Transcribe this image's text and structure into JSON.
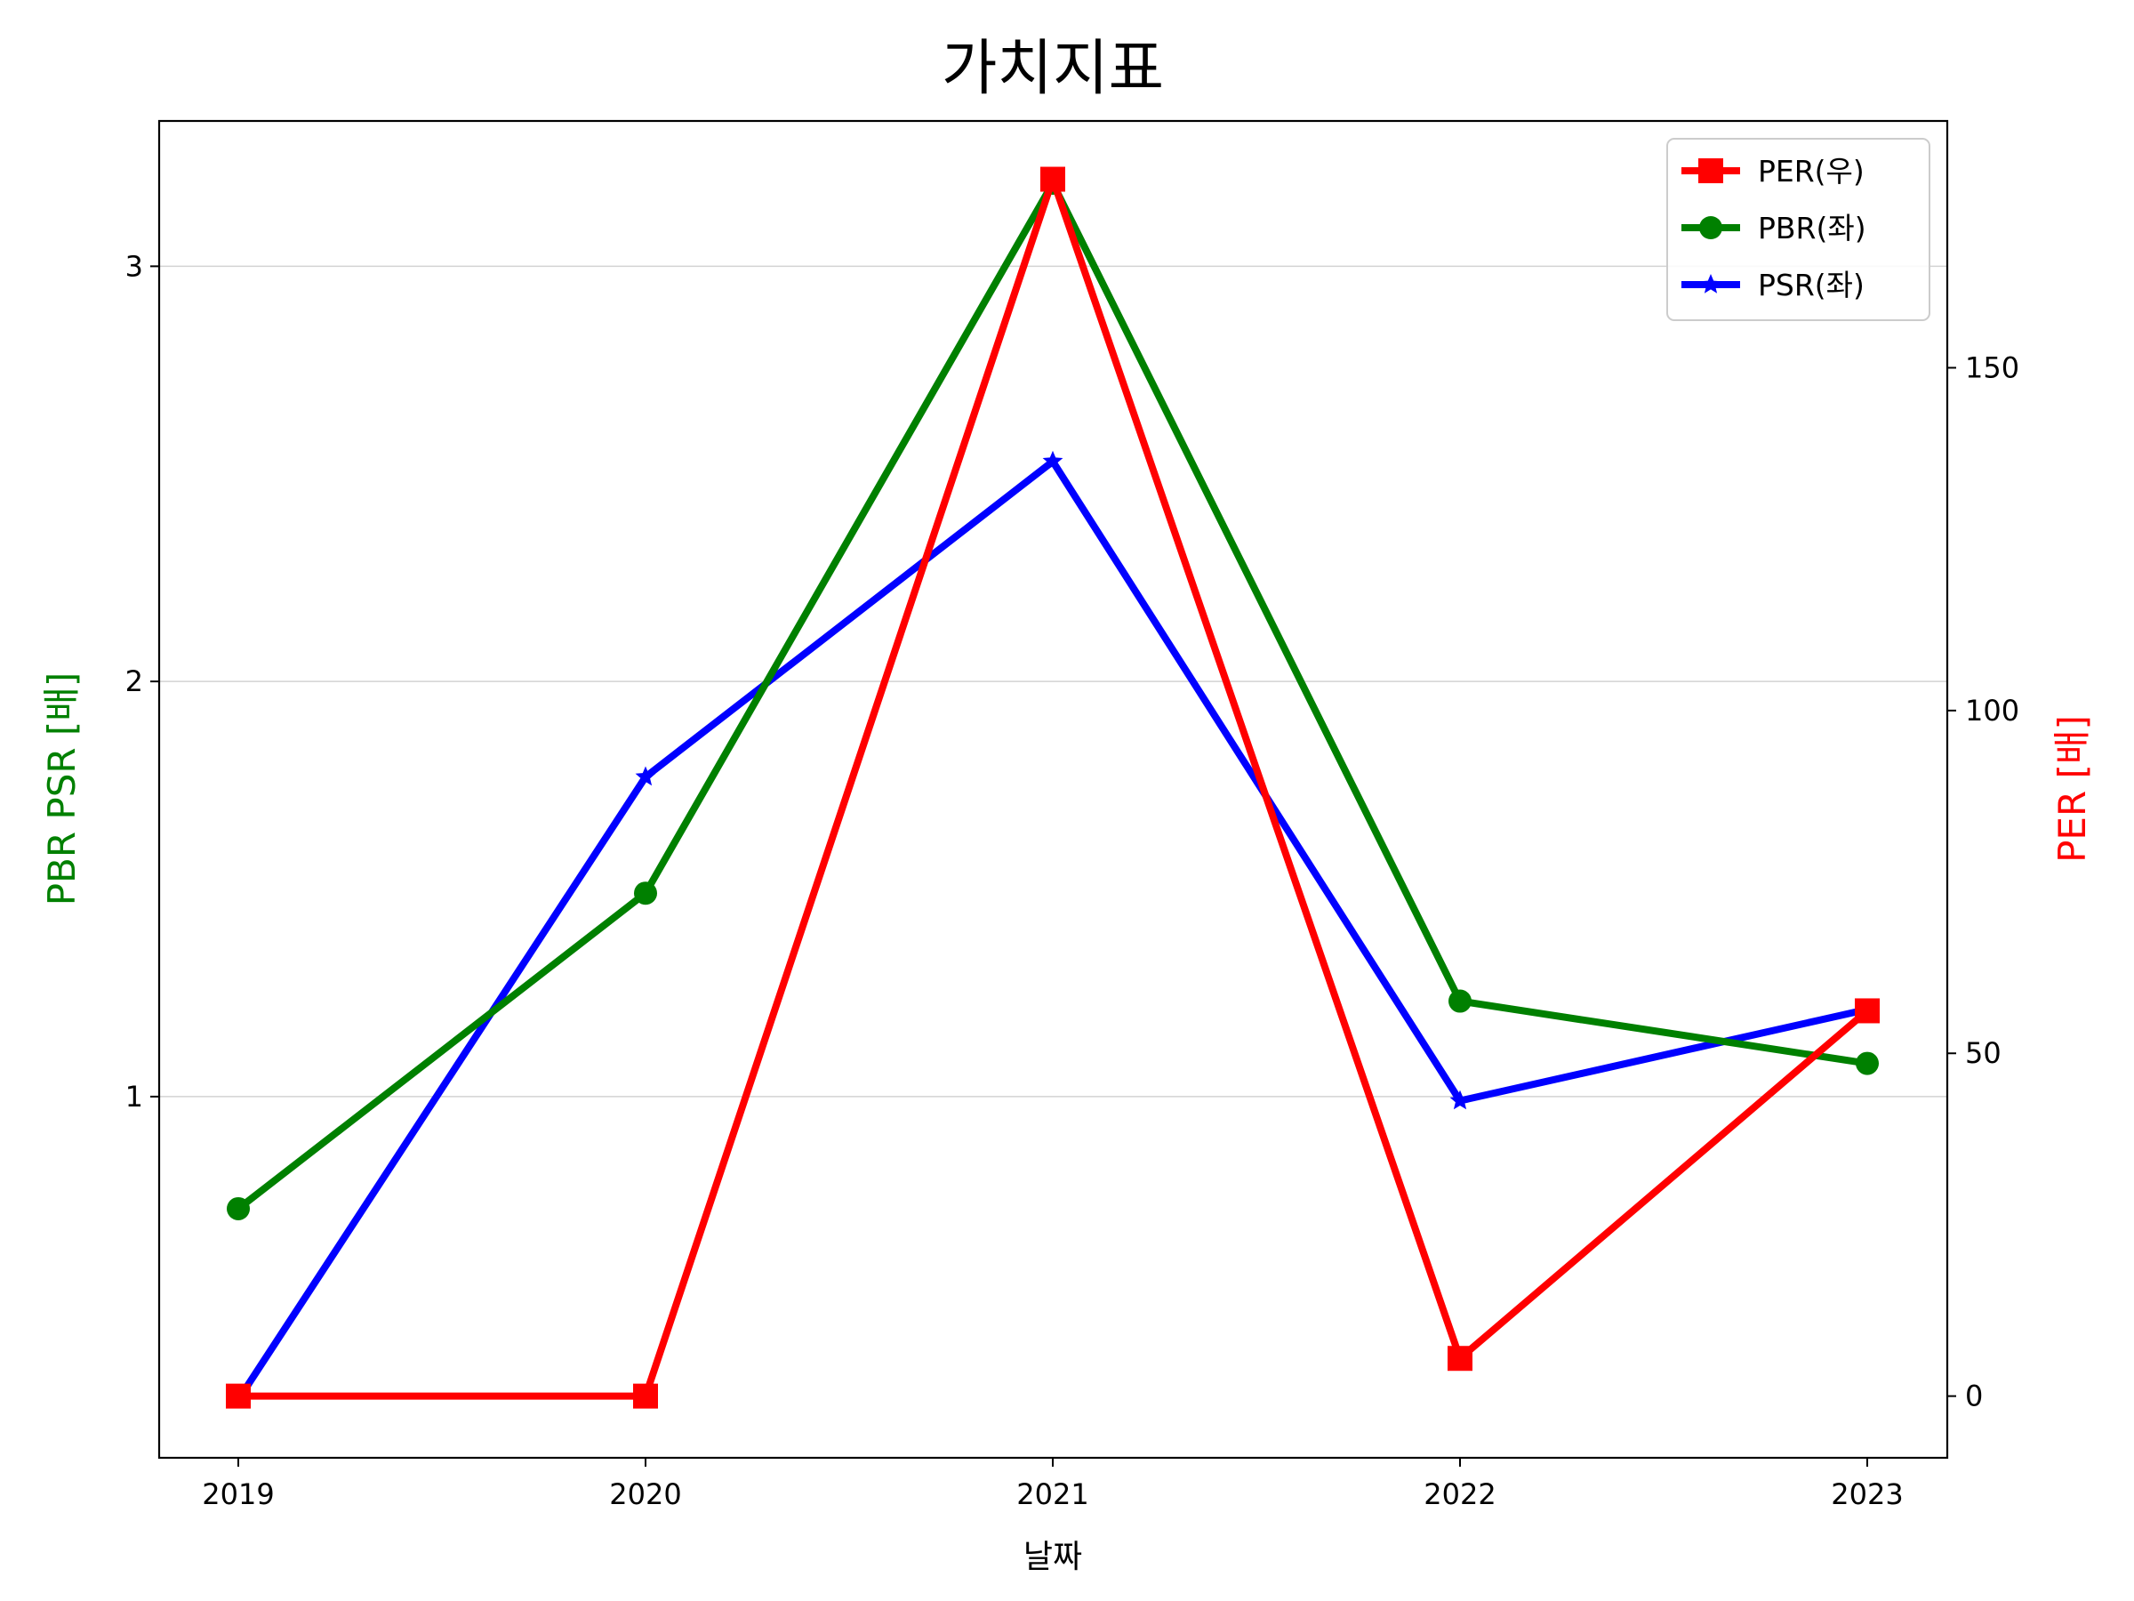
{
  "chart_data": {
    "type": "line",
    "title": "가치지표",
    "xlabel": "날짜",
    "ylabel_left": "PBR PSR [배]",
    "ylabel_right": "PER [배]",
    "categories": [
      "2019",
      "2020",
      "2021",
      "2022",
      "2023"
    ],
    "y_left": {
      "ticks": [
        1,
        2,
        3
      ],
      "range": [
        0.13,
        3.35
      ]
    },
    "y_right": {
      "ticks": [
        0,
        50,
        100,
        150
      ],
      "range": [
        -9,
        186
      ]
    },
    "grid": "horizontal (left axis)",
    "legend_position": "top-right",
    "colors": {
      "PER": "#ff0000",
      "PBR": "#008000",
      "PSR": "#0000ff"
    },
    "series": [
      {
        "name": "PER(우)",
        "axis": "right",
        "marker": "square",
        "values": [
          0,
          0,
          177.5,
          5.5,
          56.2
        ]
      },
      {
        "name": "PBR(좌)",
        "axis": "left",
        "marker": "circle",
        "values": [
          0.73,
          1.49,
          3.2,
          1.23,
          1.08
        ]
      },
      {
        "name": "PSR(좌)",
        "axis": "left",
        "marker": "star",
        "values": [
          0.27,
          1.77,
          2.53,
          0.99,
          1.21
        ]
      }
    ]
  }
}
